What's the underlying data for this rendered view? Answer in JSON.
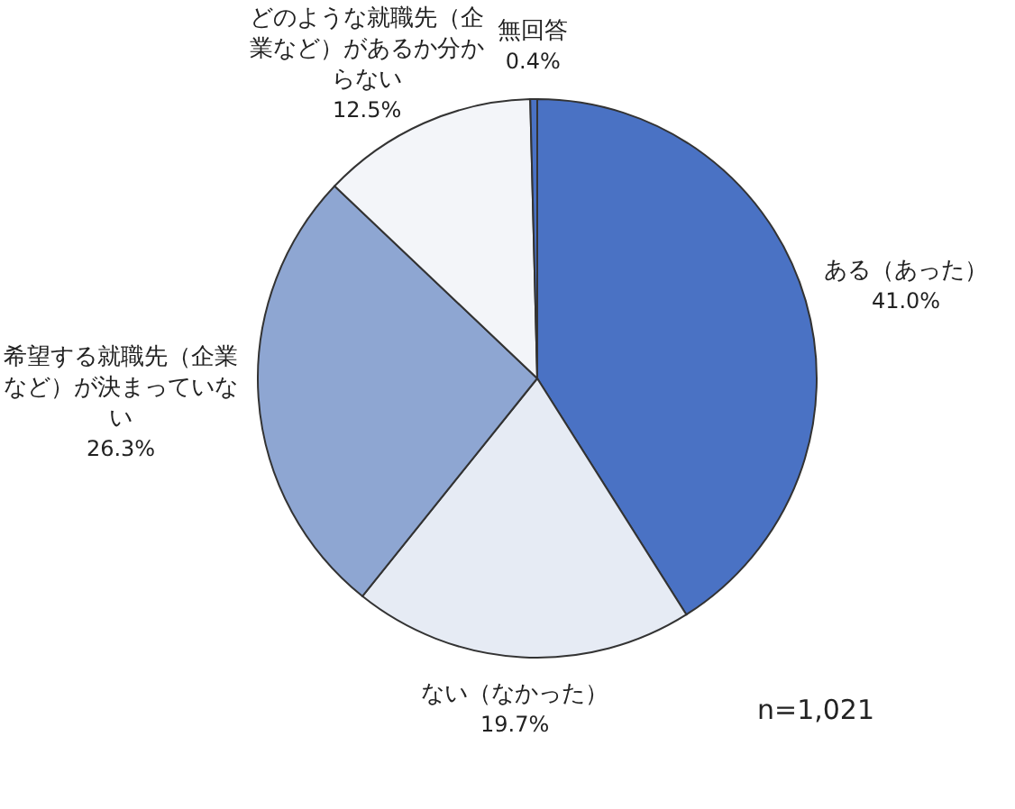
{
  "chart_data": {
    "type": "pie",
    "categories": [
      "ある（あった）",
      "ない（なかった）",
      "希望する就職先（企業など）が決まっていない",
      "どのような就職先（企業など）があるか分からない",
      "無回答"
    ],
    "values": [
      41.0,
      19.7,
      26.3,
      12.5,
      0.4
    ],
    "value_labels": [
      "41.0%",
      "19.7%",
      "26.3%",
      "12.5%",
      "0.4%"
    ],
    "colors": [
      "#4a72c4",
      "#e6ebf4",
      "#8ea6d2",
      "#f3f5f9",
      "#4a72c4"
    ],
    "annotations": [
      "n=1,021"
    ]
  }
}
